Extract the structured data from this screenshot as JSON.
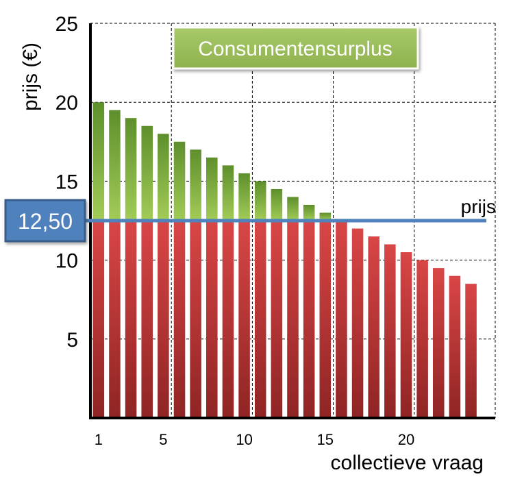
{
  "chart_data": {
    "type": "bar",
    "title": "",
    "xlabel": "collectieve vraag",
    "ylabel": "prijs (€)",
    "ylim": [
      0,
      25
    ],
    "xlim": [
      0,
      25
    ],
    "y_ticks": [
      "5",
      "10",
      "15",
      "20",
      "25"
    ],
    "x_ticks": [
      "1",
      "5",
      "10",
      "15",
      "20"
    ],
    "x_tick_values": [
      1,
      5,
      10,
      15,
      20
    ],
    "categories": [
      1,
      2,
      3,
      4,
      5,
      6,
      7,
      8,
      9,
      10,
      11,
      12,
      13,
      14,
      15,
      16,
      17,
      18,
      19,
      20,
      21,
      22,
      23,
      24
    ],
    "values": [
      20.0,
      19.5,
      19.0,
      18.5,
      18.0,
      17.5,
      17.0,
      16.5,
      16.0,
      15.5,
      15.0,
      14.5,
      14.0,
      13.5,
      13.0,
      12.5,
      12.0,
      11.5,
      11.0,
      10.5,
      10.0,
      9.5,
      9.0,
      8.5
    ],
    "price": 12.5,
    "price_label": "12,50",
    "price_line_label": "prijs",
    "legend": "Consumentensurplus",
    "grid": true,
    "colors": {
      "surplus_top": "#5e8f2c",
      "surplus_bottom": "#a3cc58",
      "cost_top": "#d94646",
      "cost_bottom": "#8f2424",
      "price_line": "#4f81bd",
      "price_box": "#4f81bd",
      "price_box_border": "#385d8a",
      "legend_fill": "#8fb24e",
      "legend_fill_light": "#a7c96a"
    }
  }
}
